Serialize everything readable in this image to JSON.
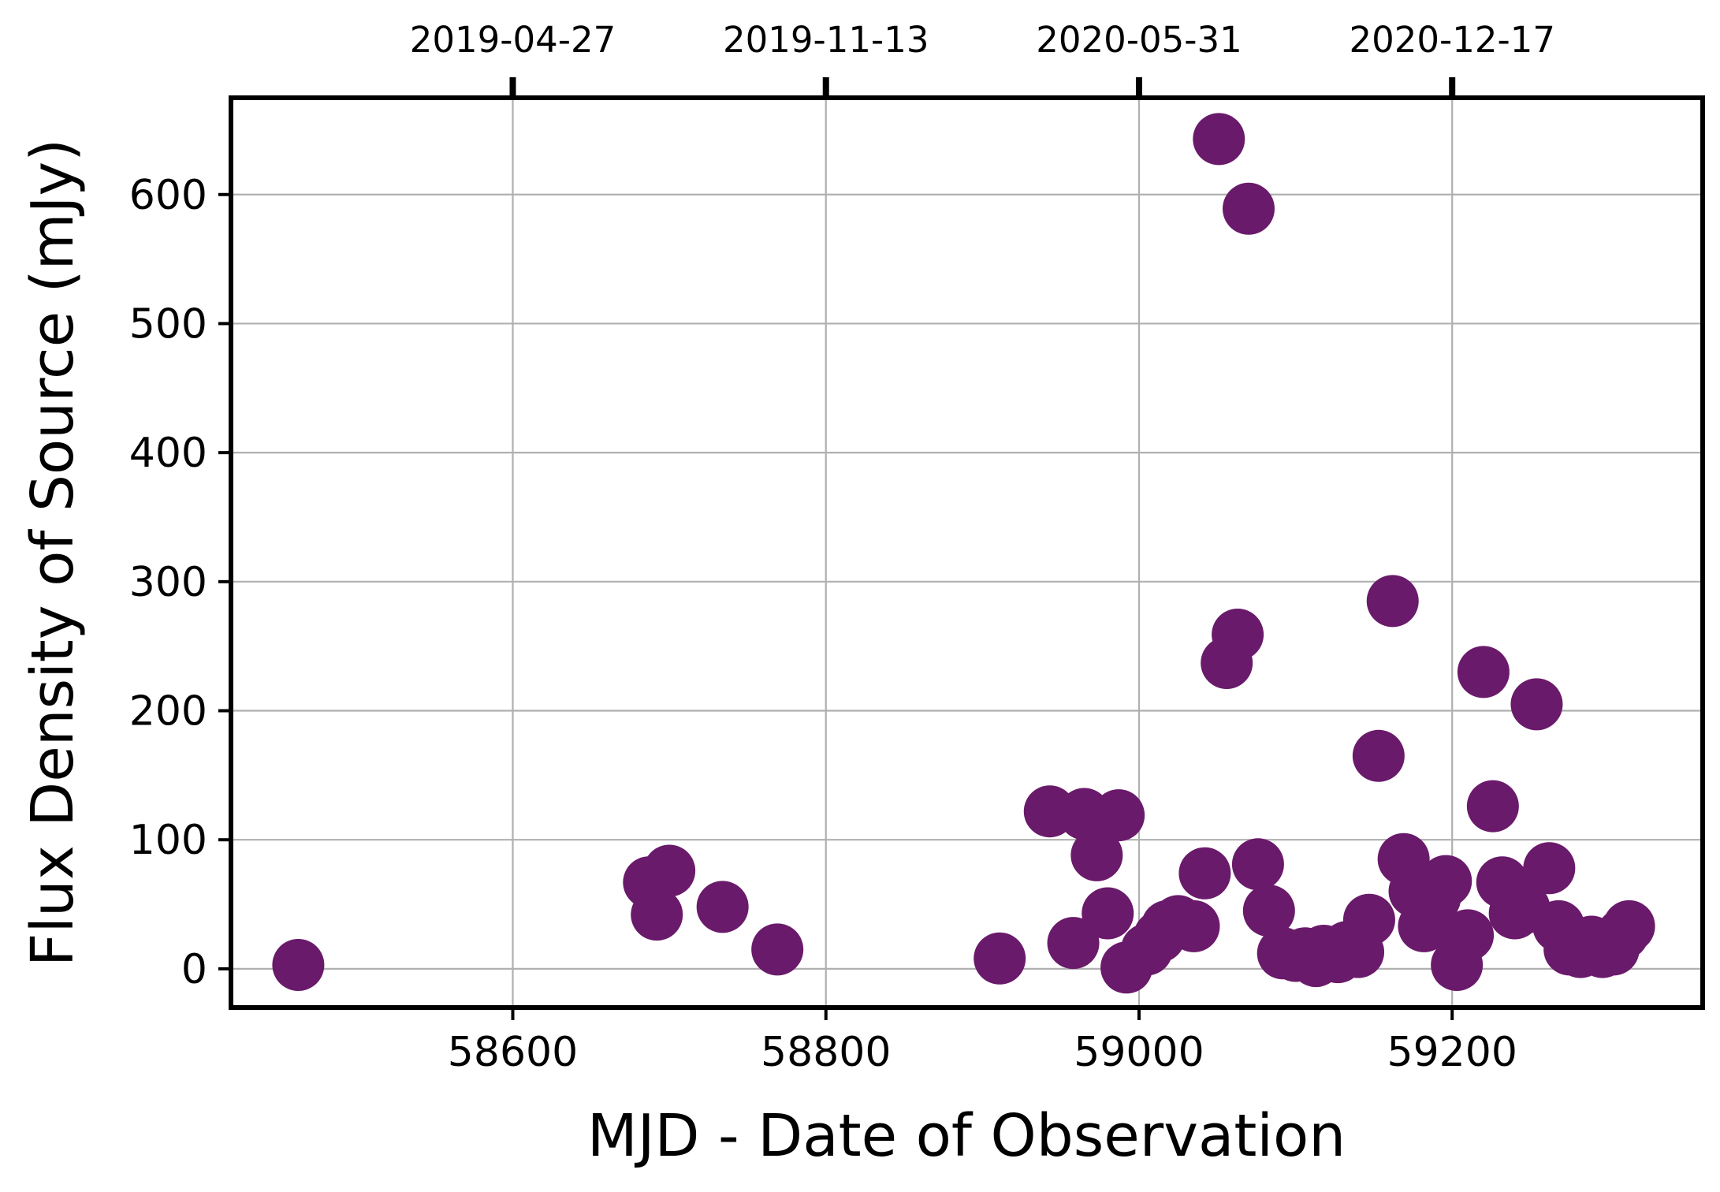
{
  "chart_data": {
    "type": "scatter",
    "title": "",
    "xlabel": "MJD - Date of Observation",
    "ylabel": "Flux Density of Source (mJy)",
    "xlim": [
      58420,
      59360
    ],
    "ylim": [
      -30,
      675
    ],
    "x_ticks": [
      58600,
      58800,
      59000,
      59200
    ],
    "x_tick_labels": [
      "58600",
      "58800",
      "59000",
      "59200"
    ],
    "y_ticks": [
      0,
      100,
      200,
      300,
      400,
      500,
      600
    ],
    "y_tick_labels": [
      "0",
      "100",
      "200",
      "300",
      "400",
      "500",
      "600"
    ],
    "top_ticks": [
      58600,
      58800,
      59000,
      59200
    ],
    "top_tick_labels": [
      "2019-04-27",
      "2019-11-13",
      "2020-05-31",
      "2020-12-17"
    ],
    "grid": true,
    "marker_color": "#6a1a6a",
    "series": [
      {
        "points": [
          [
            58463,
            3
          ],
          [
            58687,
            67
          ],
          [
            58692,
            42
          ],
          [
            58700,
            76
          ],
          [
            58734,
            48
          ],
          [
            58769,
            15
          ],
          [
            58911,
            8
          ],
          [
            58943,
            122
          ],
          [
            58958,
            20
          ],
          [
            58965,
            120
          ],
          [
            58973,
            88
          ],
          [
            58980,
            43
          ],
          [
            58987,
            119
          ],
          [
            58992,
            1
          ],
          [
            59005,
            15
          ],
          [
            59013,
            25
          ],
          [
            59018,
            33
          ],
          [
            59025,
            37
          ],
          [
            59035,
            33
          ],
          [
            59042,
            74
          ],
          [
            59051,
            643
          ],
          [
            59056,
            237
          ],
          [
            59063,
            259
          ],
          [
            59070,
            589
          ],
          [
            59076,
            81
          ],
          [
            59083,
            45
          ],
          [
            59092,
            12
          ],
          [
            59100,
            10
          ],
          [
            59106,
            12
          ],
          [
            59113,
            6
          ],
          [
            59118,
            14
          ],
          [
            59127,
            9
          ],
          [
            59133,
            17
          ],
          [
            59140,
            13
          ],
          [
            59147,
            38
          ],
          [
            59153,
            165
          ],
          [
            59162,
            285
          ],
          [
            59169,
            85
          ],
          [
            59176,
            60
          ],
          [
            59182,
            33
          ],
          [
            59189,
            55
          ],
          [
            59196,
            68
          ],
          [
            59203,
            3
          ],
          [
            59210,
            26
          ],
          [
            59220,
            230
          ],
          [
            59226,
            126
          ],
          [
            59232,
            67
          ],
          [
            59240,
            43
          ],
          [
            59246,
            47
          ],
          [
            59254,
            205
          ],
          [
            59262,
            78
          ],
          [
            59268,
            33
          ],
          [
            59275,
            15
          ],
          [
            59282,
            13
          ],
          [
            59289,
            21
          ],
          [
            59296,
            13
          ],
          [
            59303,
            15
          ],
          [
            59309,
            27
          ],
          [
            59313,
            33
          ]
        ]
      }
    ]
  }
}
